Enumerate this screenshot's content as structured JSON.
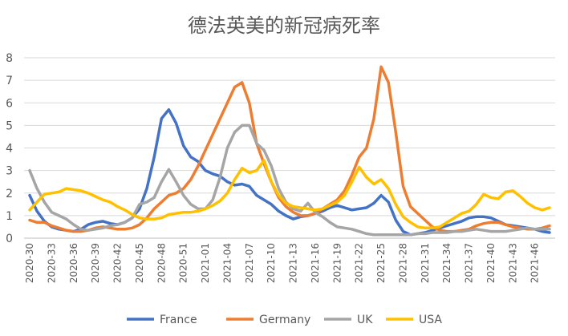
{
  "chart_data": {
    "type": "line",
    "title": "德法英美的新冠病死率",
    "xlabel": "",
    "ylabel": "",
    "ylim": [
      0,
      8
    ],
    "yticks": [
      0,
      1,
      2,
      3,
      4,
      5,
      6,
      7,
      8
    ],
    "grid": true,
    "legend_position": "bottom",
    "x": [
      "2020-30",
      "2020-31",
      "2020-32",
      "2020-33",
      "2020-34",
      "2020-35",
      "2020-36",
      "2020-37",
      "2020-38",
      "2020-39",
      "2020-40",
      "2020-41",
      "2020-42",
      "2020-43",
      "2020-44",
      "2020-45",
      "2020-46",
      "2020-47",
      "2020-48",
      "2020-49",
      "2020-50",
      "2020-51",
      "2020-52",
      "2020-53",
      "2021-01",
      "2021-02",
      "2021-03",
      "2021-04",
      "2021-05",
      "2021-06",
      "2021-07",
      "2021-08",
      "2021-09",
      "2021-10",
      "2021-11",
      "2021-12",
      "2021-13",
      "2021-14",
      "2021-15",
      "2021-16",
      "2021-17",
      "2021-18",
      "2021-19",
      "2021-20",
      "2021-21",
      "2021-22",
      "2021-23",
      "2021-24",
      "2021-25",
      "2021-26",
      "2021-27",
      "2021-28",
      "2021-29",
      "2021-30",
      "2021-31",
      "2021-32",
      "2021-33",
      "2021-34",
      "2021-35",
      "2021-36",
      "2021-37",
      "2021-38",
      "2021-39",
      "2021-40",
      "2021-41",
      "2021-42",
      "2021-43",
      "2021-44",
      "2021-45",
      "2021-46",
      "2021-47",
      "2021-48"
    ],
    "tick_labels": [
      "2020-30",
      "2020-33",
      "2020-36",
      "2020-39",
      "2020-42",
      "2020-45",
      "2020-48",
      "2020-51",
      "2021-01",
      "2021-04",
      "2021-07",
      "2021-10",
      "2021-13",
      "2021-16",
      "2021-19",
      "2021-22",
      "2021-25",
      "2021-28",
      "2021-31",
      "2021-34",
      "2021-37",
      "2021-40",
      "2021-43",
      "2021-46"
    ],
    "series": [
      {
        "name": "France",
        "color": "#4472c4",
        "values": [
          1.9,
          1.2,
          0.75,
          0.5,
          0.4,
          0.35,
          0.3,
          0.4,
          0.6,
          0.7,
          0.75,
          0.65,
          0.6,
          0.7,
          0.9,
          1.3,
          2.2,
          3.6,
          5.3,
          5.7,
          5.1,
          4.1,
          3.6,
          3.4,
          3.0,
          2.85,
          2.75,
          2.5,
          2.35,
          2.4,
          2.3,
          1.9,
          1.7,
          1.5,
          1.2,
          1.0,
          0.85,
          0.95,
          1.0,
          1.1,
          1.2,
          1.35,
          1.45,
          1.35,
          1.25,
          1.3,
          1.35,
          1.55,
          1.9,
          1.6,
          0.8,
          0.3,
          0.15,
          0.2,
          0.25,
          0.35,
          0.45,
          0.55,
          0.65,
          0.75,
          0.9,
          0.95,
          0.95,
          0.9,
          0.75,
          0.6,
          0.55,
          0.5,
          0.45,
          0.4,
          0.3,
          0.25
        ]
      },
      {
        "name": "Germany",
        "color": "#ed7d31",
        "values": [
          0.8,
          0.7,
          0.7,
          0.55,
          0.45,
          0.35,
          0.3,
          0.3,
          0.35,
          0.45,
          0.5,
          0.45,
          0.4,
          0.4,
          0.45,
          0.6,
          0.9,
          1.3,
          1.6,
          1.9,
          2.0,
          2.2,
          2.6,
          3.2,
          3.9,
          4.6,
          5.3,
          6.0,
          6.7,
          6.9,
          6.0,
          4.2,
          3.3,
          2.5,
          1.8,
          1.4,
          1.15,
          1.0,
          1.0,
          1.1,
          1.3,
          1.5,
          1.7,
          2.1,
          2.8,
          3.6,
          4.0,
          5.3,
          7.6,
          6.9,
          4.7,
          2.3,
          1.4,
          1.1,
          0.8,
          0.5,
          0.35,
          0.3,
          0.3,
          0.35,
          0.4,
          0.55,
          0.65,
          0.7,
          0.7,
          0.6,
          0.5,
          0.45,
          0.4,
          0.4,
          0.45,
          0.55
        ]
      },
      {
        "name": "UK",
        "color": "#a5a5a5",
        "values": [
          3.0,
          2.2,
          1.6,
          1.15,
          1.0,
          0.85,
          0.6,
          0.4,
          0.35,
          0.4,
          0.45,
          0.55,
          0.6,
          0.7,
          0.9,
          1.5,
          1.6,
          1.8,
          2.5,
          3.05,
          2.5,
          1.9,
          1.5,
          1.3,
          1.3,
          1.7,
          2.7,
          4.0,
          4.7,
          5.0,
          5.0,
          4.2,
          3.9,
          3.2,
          2.2,
          1.6,
          1.3,
          1.2,
          1.55,
          1.15,
          0.95,
          0.7,
          0.5,
          0.45,
          0.4,
          0.3,
          0.2,
          0.15,
          0.15,
          0.15,
          0.15,
          0.15,
          0.15,
          0.2,
          0.2,
          0.25,
          0.25,
          0.25,
          0.3,
          0.3,
          0.35,
          0.4,
          0.35,
          0.3,
          0.3,
          0.3,
          0.35,
          0.4,
          0.45,
          0.4,
          0.4,
          0.4
        ]
      },
      {
        "name": "USA",
        "color": "#ffc000",
        "values": [
          1.25,
          1.6,
          1.95,
          2.0,
          2.05,
          2.2,
          2.15,
          2.1,
          2.0,
          1.85,
          1.7,
          1.6,
          1.4,
          1.25,
          1.05,
          0.9,
          0.85,
          0.85,
          0.9,
          1.05,
          1.1,
          1.15,
          1.15,
          1.2,
          1.3,
          1.45,
          1.65,
          2.0,
          2.6,
          3.1,
          2.9,
          3.0,
          3.45,
          2.5,
          1.9,
          1.55,
          1.4,
          1.35,
          1.3,
          1.25,
          1.3,
          1.45,
          1.6,
          1.9,
          2.5,
          3.15,
          2.7,
          2.4,
          2.6,
          2.2,
          1.5,
          0.95,
          0.7,
          0.5,
          0.45,
          0.45,
          0.5,
          0.7,
          0.9,
          1.1,
          1.2,
          1.5,
          1.95,
          1.8,
          1.75,
          2.05,
          2.1,
          1.85,
          1.55,
          1.35,
          1.25,
          1.35
        ]
      }
    ]
  }
}
